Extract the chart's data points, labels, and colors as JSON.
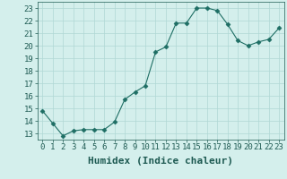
{
  "x": [
    0,
    1,
    2,
    3,
    4,
    5,
    6,
    7,
    8,
    9,
    10,
    11,
    12,
    13,
    14,
    15,
    16,
    17,
    18,
    19,
    20,
    21,
    22,
    23
  ],
  "y": [
    14.8,
    13.8,
    12.8,
    13.2,
    13.3,
    13.3,
    13.3,
    13.9,
    15.7,
    16.3,
    16.8,
    19.5,
    19.9,
    21.8,
    21.8,
    23.0,
    23.0,
    22.8,
    21.7,
    20.4,
    20.0,
    20.3,
    20.5,
    21.4
  ],
  "xlabel": "Humidex (Indice chaleur)",
  "ylim": [
    12.5,
    23.5
  ],
  "xlim": [
    -0.5,
    23.5
  ],
  "yticks": [
    13,
    14,
    15,
    16,
    17,
    18,
    19,
    20,
    21,
    22,
    23
  ],
  "xticks": [
    0,
    1,
    2,
    3,
    4,
    5,
    6,
    7,
    8,
    9,
    10,
    11,
    12,
    13,
    14,
    15,
    16,
    17,
    18,
    19,
    20,
    21,
    22,
    23
  ],
  "line_color": "#1e6e64",
  "marker": "D",
  "marker_size": 2.5,
  "bg_color": "#d4efec",
  "grid_color": "#b0d8d4",
  "tick_label_fontsize": 6.5,
  "xlabel_fontsize": 8,
  "text_color": "#1e5a52"
}
